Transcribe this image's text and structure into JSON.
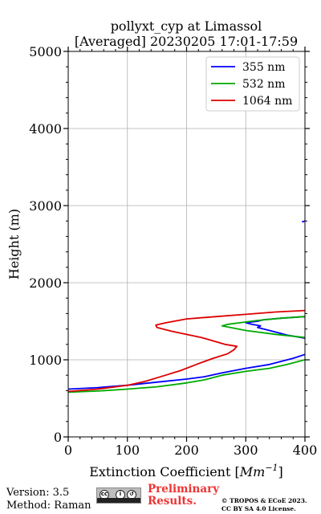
{
  "chart_data": {
    "type": "line",
    "title_line1": "pollyxt_cyp at Limassol",
    "title_line2": "[Averaged] 20230205 17:01-17:59",
    "xlabel": "Extinction Coefficient [",
    "xlabel_unit": "Mm",
    "xlabel_exp": "−1",
    "xlabel_close": "]",
    "ylabel": "Height (m)",
    "xlim": [
      0,
      400
    ],
    "ylim": [
      0,
      5000
    ],
    "xticks": [
      0,
      100,
      200,
      300,
      400
    ],
    "yticks": [
      0,
      1000,
      2000,
      3000,
      4000,
      5000
    ],
    "xtick_labels": [
      "0",
      "100",
      "200",
      "300",
      "400"
    ],
    "ytick_labels": [
      "0",
      "1000",
      "2000",
      "3000",
      "4000",
      "5000"
    ],
    "grid": true,
    "legend_position": "top-right",
    "series": [
      {
        "name": "355 nm",
        "color": "#0000ff",
        "points": [
          [
            0,
            620
          ],
          [
            50,
            640
          ],
          [
            100,
            670
          ],
          [
            150,
            710
          ],
          [
            200,
            750
          ],
          [
            230,
            780
          ],
          [
            260,
            830
          ],
          [
            300,
            890
          ],
          [
            340,
            940
          ],
          [
            380,
            1020
          ],
          [
            400,
            1070
          ],
          null,
          [
            400,
            1280
          ],
          [
            370,
            1320
          ],
          [
            340,
            1380
          ],
          [
            320,
            1420
          ],
          [
            325,
            1440
          ],
          [
            310,
            1460
          ],
          [
            300,
            1480
          ],
          [
            320,
            1500
          ],
          [
            330,
            1520
          ],
          [
            360,
            1540
          ],
          [
            400,
            1560
          ],
          null,
          [
            395,
            2790
          ],
          [
            400,
            2800
          ]
        ]
      },
      {
        "name": "532 nm",
        "color": "#00aa00",
        "points": [
          [
            0,
            580
          ],
          [
            50,
            595
          ],
          [
            100,
            620
          ],
          [
            150,
            650
          ],
          [
            200,
            700
          ],
          [
            230,
            740
          ],
          [
            260,
            800
          ],
          [
            300,
            850
          ],
          [
            340,
            890
          ],
          [
            370,
            940
          ],
          [
            400,
            1000
          ],
          null,
          [
            400,
            1290
          ],
          [
            350,
            1330
          ],
          [
            300,
            1380
          ],
          [
            260,
            1440
          ],
          [
            270,
            1460
          ],
          [
            290,
            1480
          ],
          [
            320,
            1510
          ],
          [
            360,
            1540
          ],
          [
            400,
            1560
          ]
        ]
      },
      {
        "name": "1064 nm",
        "color": "#dd0000",
        "points": [
          [
            0,
            590
          ],
          [
            50,
            620
          ],
          [
            100,
            670
          ],
          [
            130,
            720
          ],
          [
            160,
            790
          ],
          [
            190,
            860
          ],
          [
            220,
            950
          ],
          [
            245,
            1020
          ],
          [
            270,
            1080
          ],
          [
            280,
            1130
          ],
          [
            285,
            1175
          ],
          [
            265,
            1200
          ],
          [
            225,
            1290
          ],
          [
            175,
            1370
          ],
          [
            150,
            1420
          ],
          [
            148,
            1450
          ],
          [
            165,
            1480
          ],
          [
            200,
            1530
          ],
          [
            250,
            1560
          ],
          [
            300,
            1590
          ],
          [
            350,
            1620
          ],
          [
            400,
            1640
          ]
        ]
      }
    ]
  },
  "footer": {
    "version": "Version: 3.5",
    "method": "Method: Raman",
    "preliminary_line1": "Preliminary",
    "preliminary_line2": "Results.",
    "copyright_line1": "© TROPOS & ECoE 2023.",
    "copyright_line2": "CC BY SA 4.0 License."
  }
}
